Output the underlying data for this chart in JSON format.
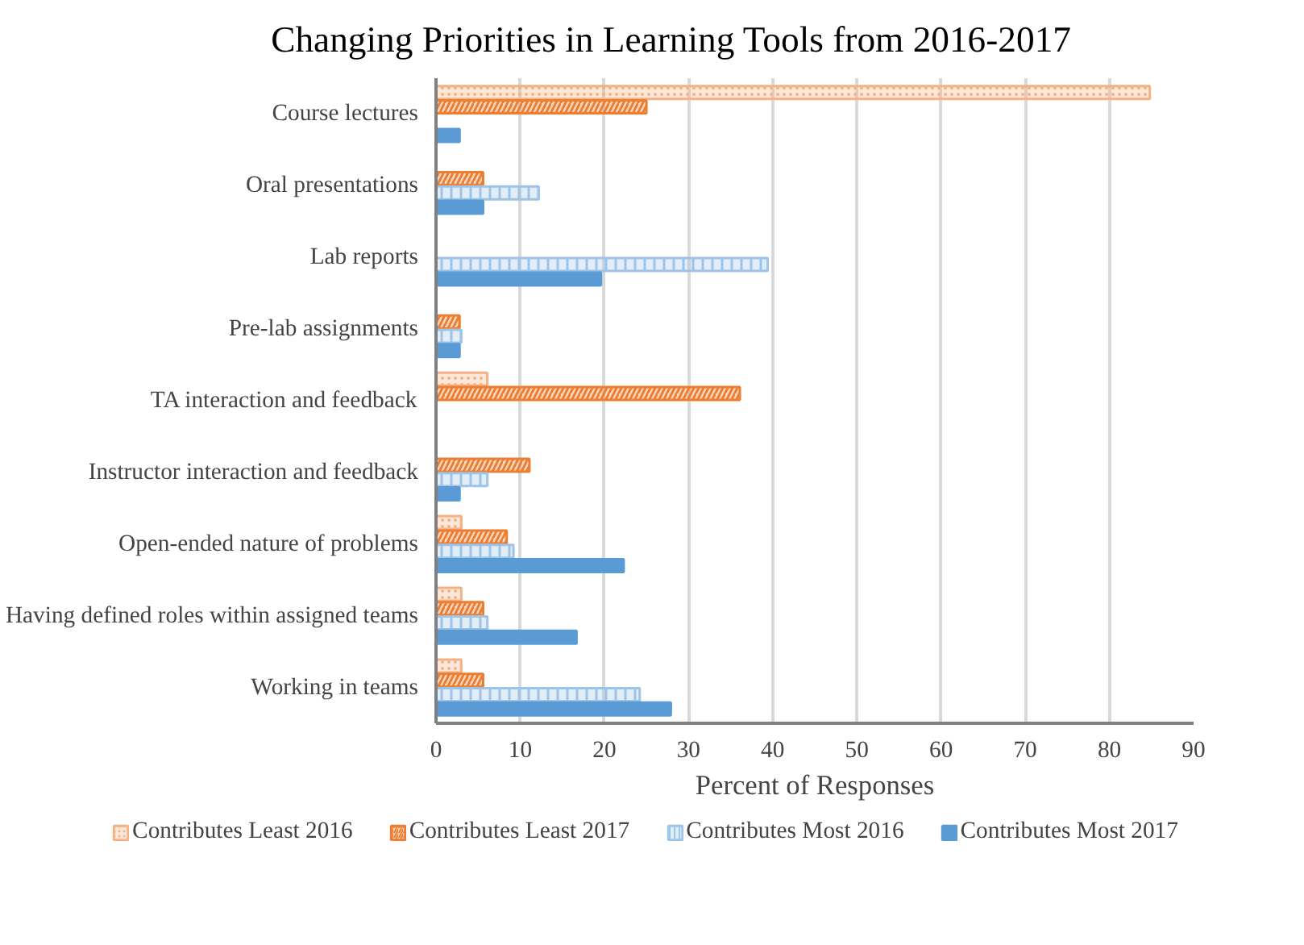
{
  "chart_data": {
    "type": "bar",
    "orientation": "horizontal",
    "title": "Changing Priorities in Learning Tools from 2016-2017",
    "xlabel": "Percent of Responses",
    "categories": [
      "Course lectures",
      "Oral presentations",
      "Lab reports",
      "Pre-lab assignments",
      "TA interaction and feedback",
      "Instructor interaction and feedback",
      "Open-ended nature of problems",
      "Having defined roles within assigned teams",
      "Working in teams"
    ],
    "series": [
      {
        "name": "Contributes Least 2016",
        "color": "#f4b183",
        "values": [
          84.8,
          null,
          null,
          null,
          6.1,
          null,
          3.0,
          3.0,
          3.0
        ]
      },
      {
        "name": "Contributes Least 2017",
        "color": "#ed7d31",
        "values": [
          25.0,
          5.6,
          null,
          2.8,
          36.1,
          11.1,
          8.4,
          5.6,
          5.6
        ]
      },
      {
        "name": "Contributes Most 2016",
        "color": "#9dc3e6",
        "values": [
          null,
          12.2,
          39.4,
          3.0,
          null,
          6.1,
          9.2,
          6.1,
          24.2
        ]
      },
      {
        "name": "Contributes Most 2017",
        "color": "#5b9bd5",
        "values": [
          2.8,
          5.6,
          19.6,
          2.8,
          null,
          2.8,
          22.3,
          16.7,
          27.9
        ]
      }
    ],
    "xlim": [
      0,
      90
    ],
    "xticks": [
      0,
      10,
      20,
      30,
      40,
      50,
      60,
      70,
      80,
      90
    ],
    "grid": "x",
    "legend": "bottom"
  }
}
